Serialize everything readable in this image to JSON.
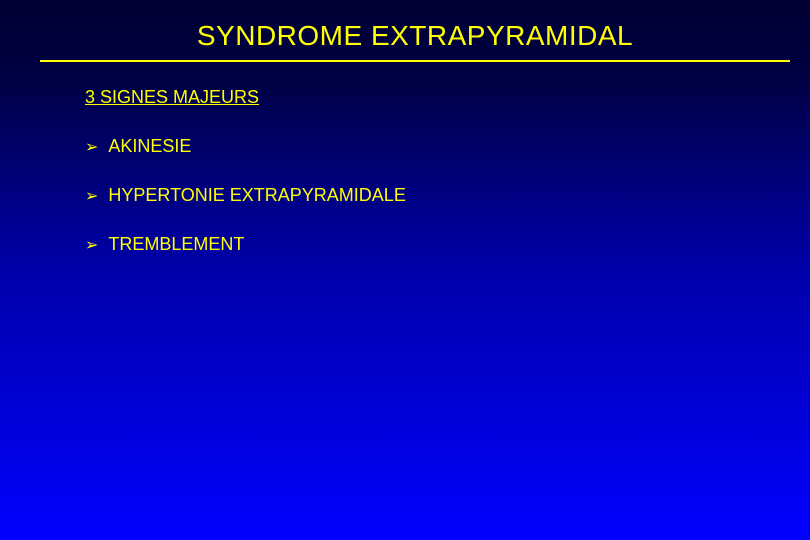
{
  "slide": {
    "title": "SYNDROME EXTRAPYRAMIDAL",
    "subtitle": "3 SIGNES MAJEURS",
    "bullets": [
      {
        "marker": "➢",
        "text": "AKINESIE"
      },
      {
        "marker": "➢",
        "text": "HYPERTONIE EXTRAPYRAMIDALE"
      },
      {
        "marker": "➢",
        "text": "TREMBLEMENT"
      }
    ],
    "colors": {
      "background_top": "#000033",
      "background_bottom": "#0000ff",
      "text": "#ffff00",
      "underline": "#ffff00"
    },
    "typography": {
      "title_fontsize": 28,
      "subtitle_fontsize": 18,
      "bullet_fontsize": 18,
      "font_family": "Arial"
    }
  }
}
